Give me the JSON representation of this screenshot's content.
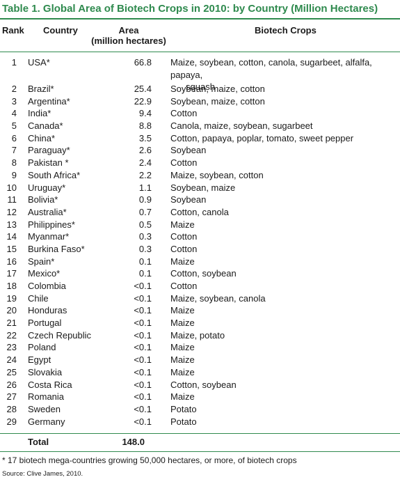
{
  "title": "Table 1.  Global Area of Biotech Crops in 2010: by Country (Million Hectares)",
  "headers": {
    "rank": "Rank",
    "country": "Country",
    "area_line1": "Area",
    "area_line2": "(million hectares)",
    "crops": "Biotech Crops"
  },
  "rows": [
    {
      "rank": "1",
      "country": "USA*",
      "area": "66.8",
      "crops": "Maize, soybean, cotton, canola, sugarbeet, alfalfa, papaya,",
      "crops_cont": "squash"
    },
    {
      "rank": "2",
      "country": "Brazil*",
      "area": "25.4",
      "crops": "Soybean, maize, cotton"
    },
    {
      "rank": "3",
      "country": "Argentina*",
      "area": "22.9",
      "crops": "Soybean, maize, cotton"
    },
    {
      "rank": "4",
      "country": "India*",
      "area": "9.4",
      "crops": "Cotton"
    },
    {
      "rank": "5",
      "country": "Canada*",
      "area": "8.8",
      "crops": "Canola, maize, soybean, sugarbeet"
    },
    {
      "rank": "6",
      "country": "China*",
      "area": "3.5",
      "crops": "Cotton, papaya, poplar, tomato, sweet pepper"
    },
    {
      "rank": "7",
      "country": "Paraguay*",
      "area": "2.6",
      "crops": "Soybean"
    },
    {
      "rank": "8",
      "country": "Pakistan *",
      "area": "2.4",
      "crops": "Cotton"
    },
    {
      "rank": "9",
      "country": "South Africa*",
      "area": "2.2",
      "crops": "Maize, soybean, cotton"
    },
    {
      "rank": "10",
      "country": "Uruguay*",
      "area": "1.1",
      "crops": "Soybean, maize"
    },
    {
      "rank": "11",
      "country": "Bolivia*",
      "area": "0.9",
      "crops": "Soybean"
    },
    {
      "rank": "12",
      "country": "Australia*",
      "area": "0.7",
      "crops": "Cotton, canola"
    },
    {
      "rank": "13",
      "country": "Philippines*",
      "area": "0.5",
      "crops": "Maize"
    },
    {
      "rank": "14",
      "country": "Myanmar*",
      "area": "0.3",
      "crops": "Cotton"
    },
    {
      "rank": "15",
      "country": "Burkina Faso*",
      "area": "0.3",
      "crops": "Cotton"
    },
    {
      "rank": "16",
      "country": "Spain*",
      "area": "0.1",
      "crops": "Maize"
    },
    {
      "rank": "17",
      "country": "Mexico*",
      "area": "0.1",
      "crops": "Cotton, soybean"
    },
    {
      "rank": "18",
      "country": "Colombia",
      "area": "<0.1",
      "crops": "Cotton"
    },
    {
      "rank": "19",
      "country": "Chile",
      "area": "<0.1",
      "crops": "Maize, soybean, canola"
    },
    {
      "rank": "20",
      "country": "Honduras",
      "area": "<0.1",
      "crops": "Maize"
    },
    {
      "rank": "21",
      "country": "Portugal",
      "area": "<0.1",
      "crops": "Maize"
    },
    {
      "rank": "22",
      "country": "Czech Republic",
      "area": "<0.1",
      "crops": "Maize, potato"
    },
    {
      "rank": "23",
      "country": "Poland",
      "area": "<0.1",
      "crops": "Maize"
    },
    {
      "rank": "24",
      "country": "Egypt",
      "area": "<0.1",
      "crops": "Maize"
    },
    {
      "rank": "25",
      "country": "Slovakia",
      "area": "<0.1",
      "crops": "Maize"
    },
    {
      "rank": "26",
      "country": "Costa Rica",
      "area": "<0.1",
      "crops": "Cotton, soybean"
    },
    {
      "rank": "27",
      "country": "Romania",
      "area": "<0.1",
      "crops": "Maize"
    },
    {
      "rank": "28",
      "country": "Sweden",
      "area": "<0.1",
      "crops": "Potato"
    },
    {
      "rank": "29",
      "country": "Germany",
      "area": "<0.1",
      "crops": "Potato"
    }
  ],
  "total": {
    "label": "Total",
    "value": "148.0"
  },
  "footnote": "* 17 biotech mega-countries growing 50,000 hectares, or more, of biotech crops",
  "source": "Source: Clive James, 2010.",
  "colors": {
    "accent": "#2f8a4e"
  }
}
